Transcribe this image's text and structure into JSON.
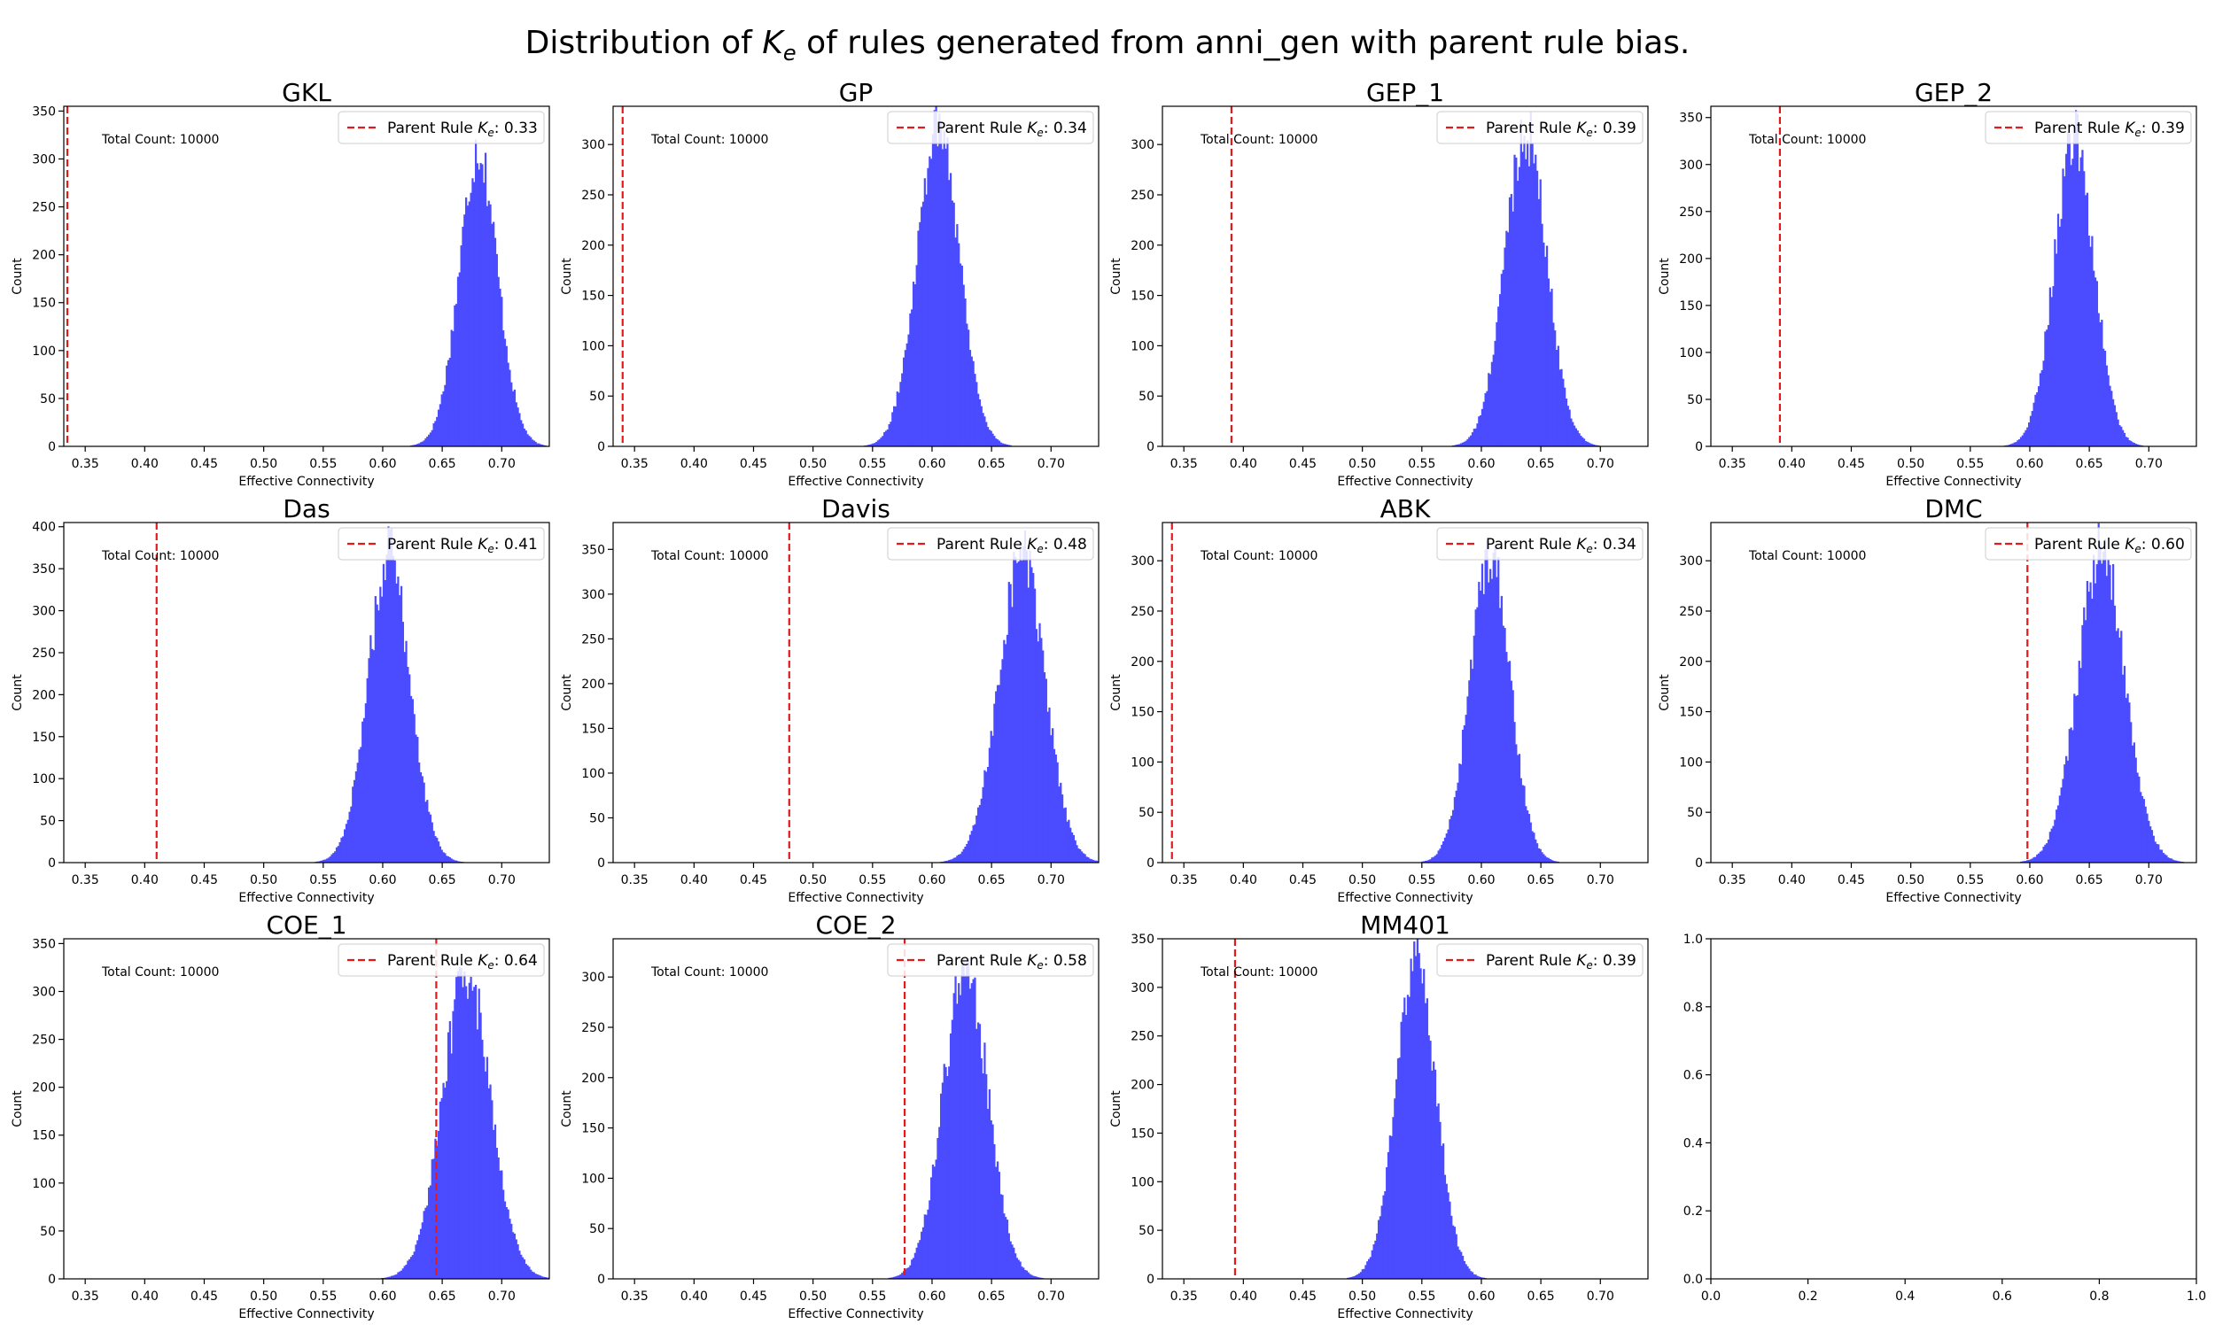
{
  "figure": {
    "title_prefix": "Distribution of ",
    "title_symbol": "K",
    "title_subscript": "e",
    "title_suffix": " of rules generated from anni_gen with parent rule bias."
  },
  "common": {
    "xlabel": "Effective Connectivity",
    "ylabel": "Count",
    "count_label": "Total Count: 10000",
    "legend_prefix": "Parent Rule ",
    "legend_symbol": "K",
    "legend_subscript": "e",
    "legend_sep": ": ",
    "hist_color": "#4B4BFF",
    "line_color": "#E31A1C"
  },
  "chart_data": [
    {
      "type": "bar",
      "title": "GKL",
      "xlabel": "Effective Connectivity",
      "ylabel": "Count",
      "xlim": [
        0.332,
        0.74
      ],
      "ylim": [
        0,
        355
      ],
      "yticks": [
        0,
        50,
        100,
        150,
        200,
        250,
        300,
        350
      ],
      "parent_ke": 0.335,
      "parent_ke_label": "0.33",
      "total_count": 10000,
      "dist_mean": 0.68,
      "dist_sd": 0.017,
      "dist_peak": 315,
      "dist_skew": -1.4
    },
    {
      "type": "bar",
      "title": "GP",
      "xlabel": "Effective Connectivity",
      "ylabel": "Count",
      "xlim": [
        0.332,
        0.74
      ],
      "ylim": [
        0,
        338
      ],
      "yticks": [
        0,
        50,
        100,
        150,
        200,
        250,
        300
      ],
      "parent_ke": 0.34,
      "parent_ke_label": "0.34",
      "total_count": 10000,
      "dist_mean": 0.605,
      "dist_sd": 0.018,
      "dist_peak": 325,
      "dist_skew": -0.4
    },
    {
      "type": "bar",
      "title": "GEP_1",
      "xlabel": "Effective Connectivity",
      "ylabel": "Count",
      "xlim": [
        0.332,
        0.74
      ],
      "ylim": [
        0,
        338
      ],
      "yticks": [
        0,
        50,
        100,
        150,
        200,
        250,
        300
      ],
      "parent_ke": 0.39,
      "parent_ke_label": "0.39",
      "total_count": 10000,
      "dist_mean": 0.637,
      "dist_sd": 0.018,
      "dist_peak": 315,
      "dist_skew": -0.5
    },
    {
      "type": "bar",
      "title": "GEP_2",
      "xlabel": "Effective Connectivity",
      "ylabel": "Count",
      "xlim": [
        0.332,
        0.74
      ],
      "ylim": [
        0,
        362
      ],
      "yticks": [
        0,
        50,
        100,
        150,
        200,
        250,
        300,
        350
      ],
      "parent_ke": 0.39,
      "parent_ke_label": "0.39",
      "total_count": 10000,
      "dist_mean": 0.637,
      "dist_sd": 0.017,
      "dist_peak": 330,
      "dist_skew": -0.5
    },
    {
      "type": "bar",
      "title": "Das",
      "xlabel": "Effective Connectivity",
      "ylabel": "Count",
      "xlim": [
        0.332,
        0.74
      ],
      "ylim": [
        0,
        405
      ],
      "yticks": [
        0,
        50,
        100,
        150,
        200,
        250,
        300,
        350,
        400
      ],
      "parent_ke": 0.41,
      "parent_ke_label": "0.41",
      "total_count": 10000,
      "dist_mean": 0.605,
      "dist_sd": 0.018,
      "dist_peak": 370,
      "dist_skew": -0.6
    },
    {
      "type": "bar",
      "title": "Davis",
      "xlabel": "Effective Connectivity",
      "ylabel": "Count",
      "xlim": [
        0.332,
        0.74
      ],
      "ylim": [
        0,
        380
      ],
      "yticks": [
        0,
        50,
        100,
        150,
        200,
        250,
        300,
        350
      ],
      "parent_ke": 0.48,
      "parent_ke_label": "0.48",
      "total_count": 10000,
      "dist_mean": 0.675,
      "dist_sd": 0.02,
      "dist_peak": 350,
      "dist_skew": -1.0
    },
    {
      "type": "bar",
      "title": "ABK",
      "xlabel": "Effective Connectivity",
      "ylabel": "Count",
      "xlim": [
        0.332,
        0.74
      ],
      "ylim": [
        0,
        338
      ],
      "yticks": [
        0,
        50,
        100,
        150,
        200,
        250,
        300
      ],
      "parent_ke": 0.34,
      "parent_ke_label": "0.34",
      "total_count": 10000,
      "dist_mean": 0.607,
      "dist_sd": 0.017,
      "dist_peak": 310,
      "dist_skew": -0.5
    },
    {
      "type": "bar",
      "title": "DMC",
      "xlabel": "Effective Connectivity",
      "ylabel": "Count",
      "xlim": [
        0.332,
        0.74
      ],
      "ylim": [
        0,
        338
      ],
      "yticks": [
        0,
        50,
        100,
        150,
        200,
        250,
        300
      ],
      "parent_ke": 0.598,
      "parent_ke_label": "0.60",
      "total_count": 10000,
      "dist_mean": 0.66,
      "dist_sd": 0.02,
      "dist_peak": 310,
      "dist_skew": -0.4
    },
    {
      "type": "bar",
      "title": "COE_1",
      "xlabel": "Effective Connectivity",
      "ylabel": "Count",
      "xlim": [
        0.332,
        0.74
      ],
      "ylim": [
        0,
        355
      ],
      "yticks": [
        0,
        50,
        100,
        150,
        200,
        250,
        300,
        350
      ],
      "parent_ke": 0.645,
      "parent_ke_label": "0.64",
      "total_count": 10000,
      "dist_mean": 0.67,
      "dist_sd": 0.021,
      "dist_peak": 325,
      "dist_skew": -1.1
    },
    {
      "type": "bar",
      "title": "COE_2",
      "xlabel": "Effective Connectivity",
      "ylabel": "Count",
      "xlim": [
        0.332,
        0.74
      ],
      "ylim": [
        0,
        338
      ],
      "yticks": [
        0,
        50,
        100,
        150,
        200,
        250,
        300
      ],
      "parent_ke": 0.577,
      "parent_ke_label": "0.58",
      "total_count": 10000,
      "dist_mean": 0.628,
      "dist_sd": 0.019,
      "dist_peak": 310,
      "dist_skew": -0.3
    },
    {
      "type": "bar",
      "title": "MM401",
      "xlabel": "Effective Connectivity",
      "ylabel": "Count",
      "xlim": [
        0.332,
        0.74
      ],
      "ylim": [
        0,
        350
      ],
      "yticks": [
        0,
        50,
        100,
        150,
        200,
        250,
        300,
        350
      ],
      "parent_ke": 0.393,
      "parent_ke_label": "0.39",
      "total_count": 10000,
      "dist_mean": 0.545,
      "dist_sd": 0.017,
      "dist_peak": 325,
      "dist_skew": -0.3
    },
    {
      "type": "bar",
      "title": "",
      "empty": true,
      "xlim": [
        0,
        1
      ],
      "ylim": [
        0,
        1
      ],
      "xticks": [
        0.0,
        0.2,
        0.4,
        0.6,
        0.8,
        1.0
      ],
      "xtick_labels": [
        "0.0",
        "0.2",
        "0.4",
        "0.6",
        "0.8",
        "1.0"
      ],
      "yticks": [
        0.0,
        0.2,
        0.4,
        0.6,
        0.8,
        1.0
      ],
      "ytick_labels": [
        "0.0",
        "0.2",
        "0.4",
        "0.6",
        "0.8",
        "1.0"
      ]
    }
  ],
  "x_ticks": [
    0.35,
    0.4,
    0.45,
    0.5,
    0.55,
    0.6,
    0.65,
    0.7
  ],
  "x_tick_labels": [
    "0.35",
    "0.40",
    "0.45",
    "0.50",
    "0.55",
    "0.60",
    "0.65",
    "0.70"
  ]
}
